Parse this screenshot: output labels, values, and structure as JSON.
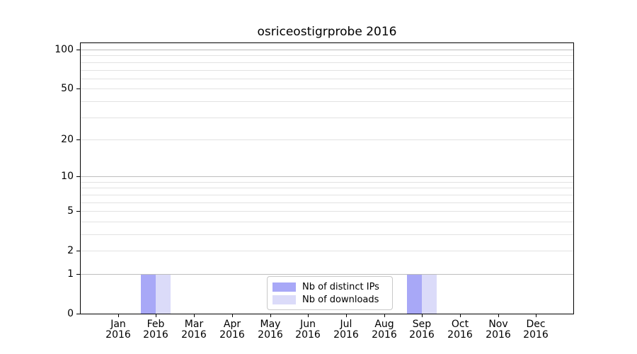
{
  "chart_data": {
    "type": "bar",
    "title": "osriceostigrprobe 2016",
    "xlabel": "",
    "ylabel": "",
    "yscale": "log1p",
    "grid": "horizontal",
    "legend_position": "lower center",
    "ylim": [
      0,
      112
    ],
    "y_ticks": [
      0,
      1,
      2,
      5,
      10,
      20,
      50,
      100
    ],
    "y_major_gridlines": [
      1,
      10,
      100
    ],
    "y_minor_gridlines": [
      2,
      3,
      4,
      5,
      6,
      7,
      8,
      9,
      20,
      30,
      40,
      50,
      60,
      70,
      80,
      90
    ],
    "categories": [
      {
        "month": "Jan",
        "year": "2016"
      },
      {
        "month": "Feb",
        "year": "2016"
      },
      {
        "month": "Mar",
        "year": "2016"
      },
      {
        "month": "Apr",
        "year": "2016"
      },
      {
        "month": "May",
        "year": "2016"
      },
      {
        "month": "Jun",
        "year": "2016"
      },
      {
        "month": "Jul",
        "year": "2016"
      },
      {
        "month": "Aug",
        "year": "2016"
      },
      {
        "month": "Sep",
        "year": "2016"
      },
      {
        "month": "Oct",
        "year": "2016"
      },
      {
        "month": "Nov",
        "year": "2016"
      },
      {
        "month": "Dec",
        "year": "2016"
      }
    ],
    "series": [
      {
        "name": "Nb of distinct IPs",
        "color": "#a8a8f7",
        "values": [
          0,
          1,
          0,
          0,
          0,
          0,
          0,
          0,
          1,
          0,
          0,
          0
        ]
      },
      {
        "name": "Nb of downloads",
        "color": "#dbdbf9",
        "values": [
          0,
          1,
          0,
          0,
          0,
          0,
          0,
          0,
          1,
          0,
          0,
          0
        ]
      }
    ],
    "colors": {
      "grid_major": "#bdbdbd",
      "grid_minor": "#e2e2e2",
      "axis": "#000000",
      "background": "#ffffff"
    }
  }
}
